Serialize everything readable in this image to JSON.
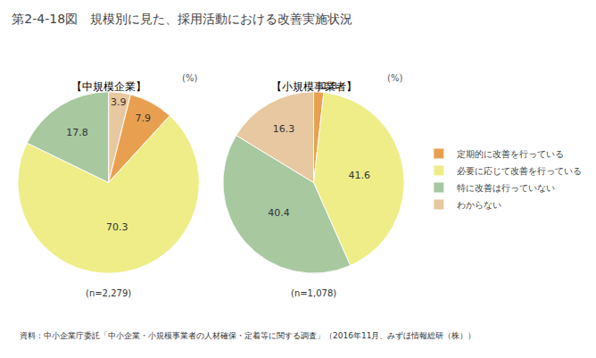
{
  "title": "第2-4-18図",
  "subtitle": "規模別に見た、採用活動における改善実施状況",
  "annotations": [
    "資料：中小企業庁委託「中小企業・小規模事業者の人材確保・定着等に関する調査」（2016年11月、みずほ情報総研（株））"
  ],
  "legend": "right",
  "chart_data": [
    {
      "type": "pie",
      "title": "【中規模企業】",
      "subtitle": "(n=2,279)",
      "annotations": [
        "(%)"
      ],
      "categories": [
        "わからない",
        "定期的に改善を行っている",
        "必要に応じて改善を行っている",
        "特に改善は行っていない"
      ],
      "values": [
        3.9,
        7.9,
        70.3,
        17.8
      ],
      "colors": [
        "#E8C8A0",
        "#E8A050",
        "#EEED88",
        "#A8C8A0"
      ],
      "data_labels": true
    },
    {
      "type": "pie",
      "title": "【小規模事業者】",
      "subtitle": "(n=1,078)",
      "annotations": [
        "(%)"
      ],
      "categories": [
        "定期的に改善を行っている",
        "必要に応じて改善を行っている",
        "特に改善は行っていない",
        "わからない"
      ],
      "values": [
        1.8,
        41.6,
        40.4,
        16.3
      ],
      "colors": [
        "#E8A050",
        "#EEED88",
        "#A8C8A0",
        "#E8C8A0"
      ],
      "data_labels": true
    }
  ]
}
